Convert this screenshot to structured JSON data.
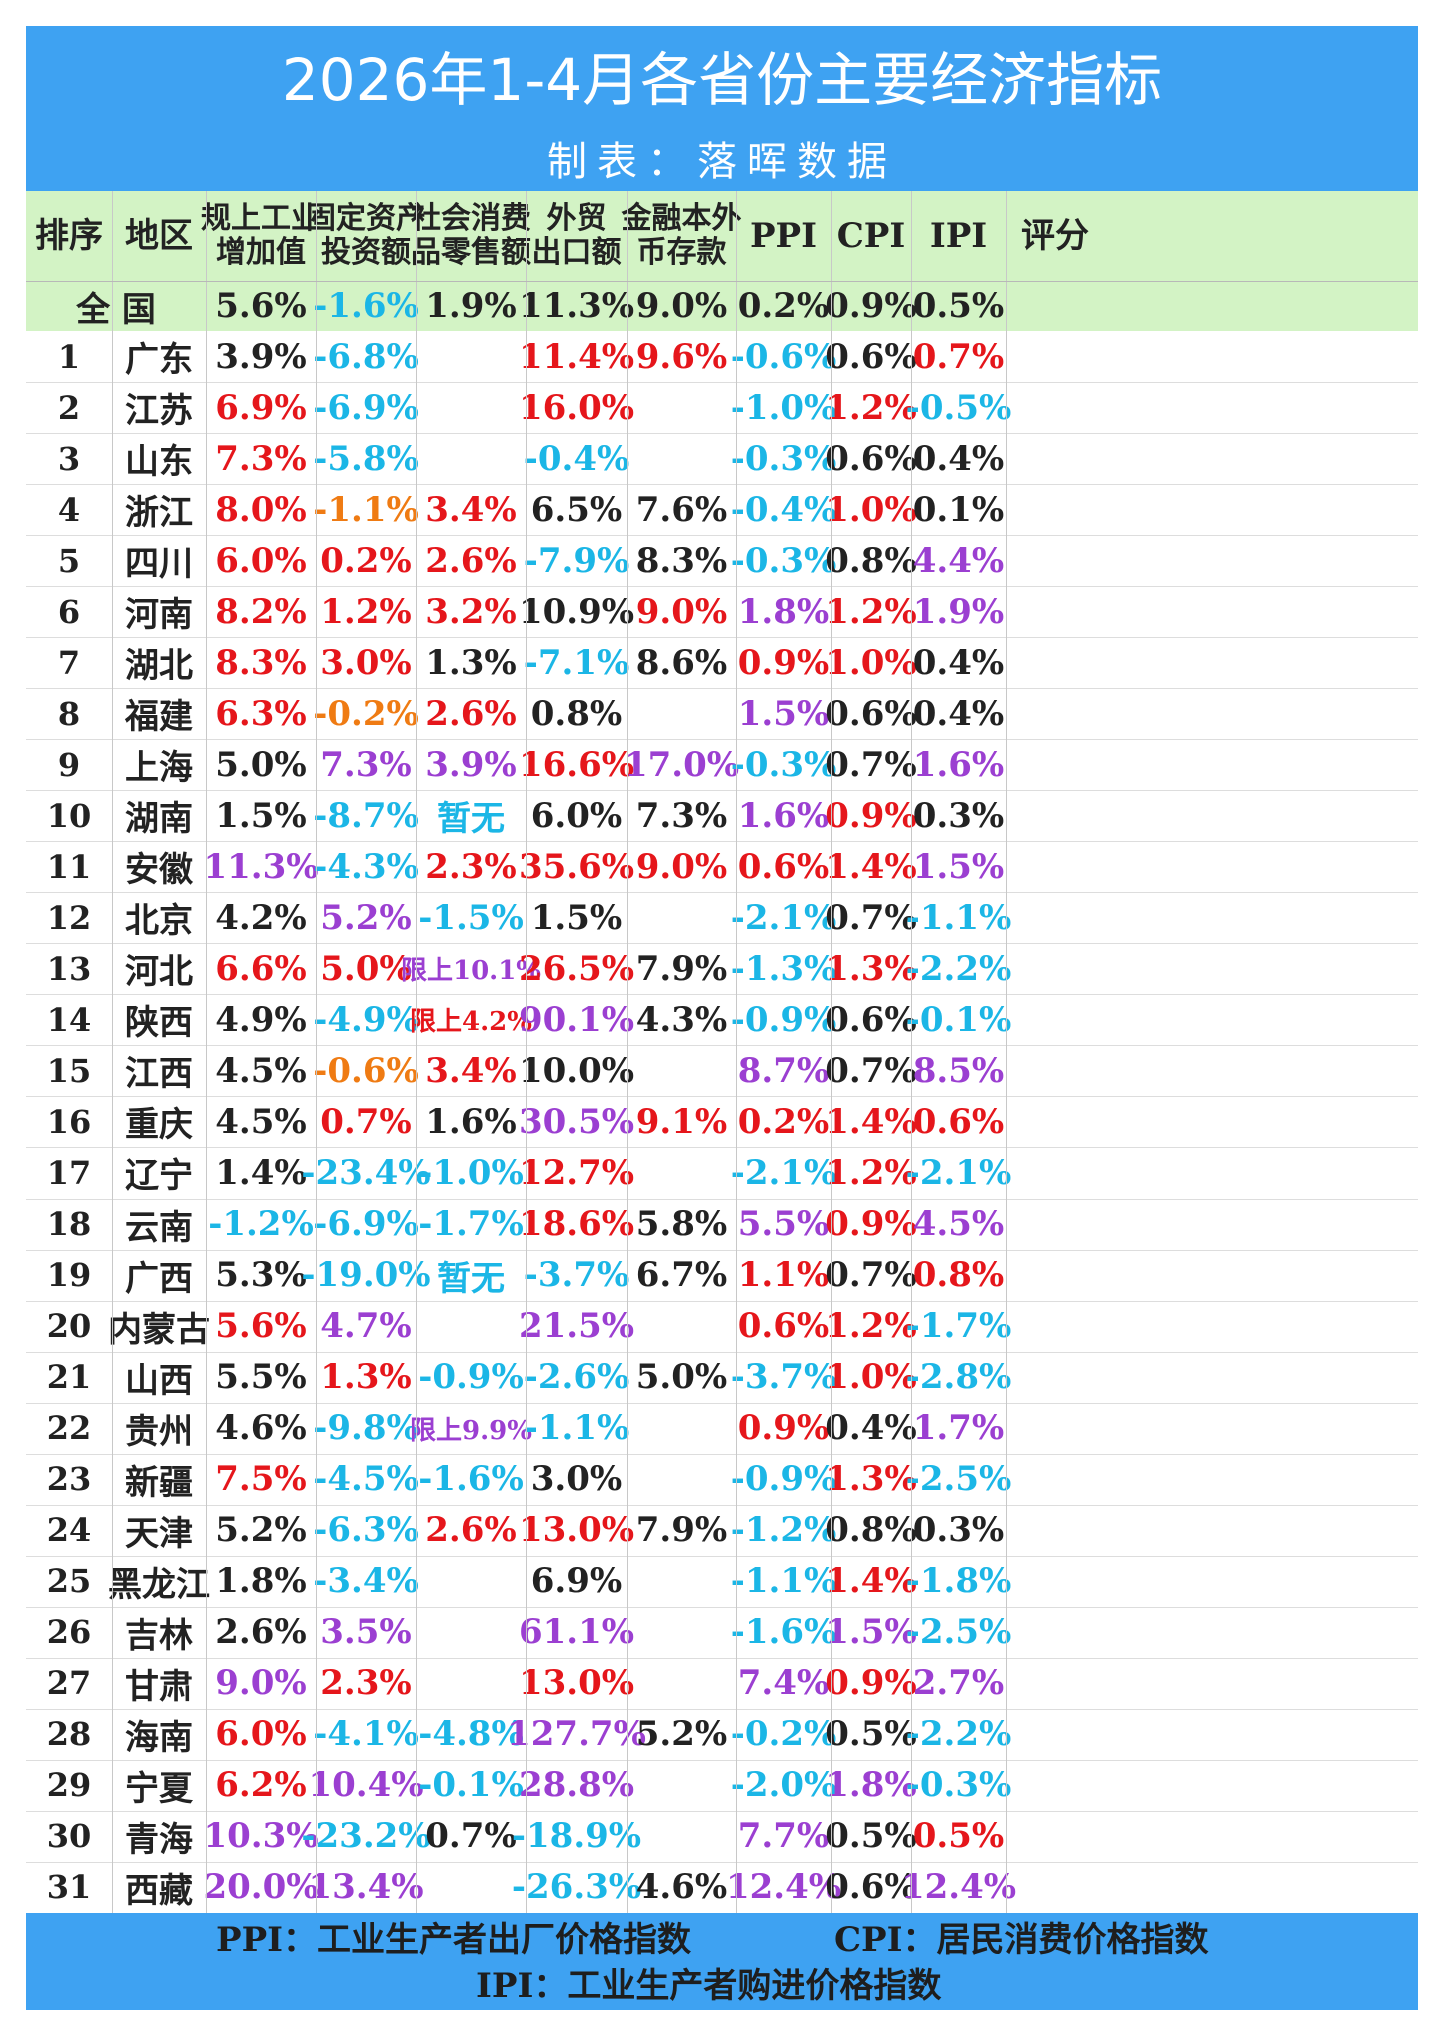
{
  "title": "2026年1-4月各省份主要经济指标",
  "subtitle": "制表：落晖数据",
  "colors": {
    "black": "#222222",
    "red": "#e5161b",
    "blue": "#1bb6e6",
    "purple": "#9b3fd1",
    "orange": "#ef7b13",
    "title_band": "#3ea2f2",
    "header_band": "#d3f3c5"
  },
  "headers": [
    {
      "line1": "排序",
      "line2": ""
    },
    {
      "line1": "地区",
      "line2": ""
    },
    {
      "line1": "规上工业",
      "line2": "增加值"
    },
    {
      "line1": "固定资产",
      "line2": "投资额"
    },
    {
      "line1": "社会消费",
      "line2": "品零售额"
    },
    {
      "line1": "外贸",
      "line2": "出口额"
    },
    {
      "line1": "金融本外",
      "line2": "币存款"
    },
    {
      "line1": "PPI",
      "line2": ""
    },
    {
      "line1": "CPI",
      "line2": ""
    },
    {
      "line1": "IPI",
      "line2": ""
    },
    {
      "line1": "评分",
      "line2": ""
    }
  ],
  "national": {
    "label": "全 国",
    "values": [
      [
        "5.6%",
        "k"
      ],
      [
        "-1.6%",
        "b"
      ],
      [
        "1.9%",
        "k"
      ],
      [
        "11.3%",
        "k"
      ],
      [
        "9.0%",
        "k"
      ],
      [
        "0.2%",
        "k"
      ],
      [
        "0.9%",
        "k"
      ],
      [
        "0.5%",
        "k"
      ]
    ]
  },
  "rows": [
    {
      "rank": "1",
      "region": "广东",
      "vals": [
        [
          "3.9%",
          "k"
        ],
        [
          "-6.8%",
          "b"
        ],
        [
          "",
          ""
        ],
        [
          "11.4%",
          "r"
        ],
        [
          "9.6%",
          "r"
        ],
        [
          "-0.6%",
          "b"
        ],
        [
          "0.6%",
          "k"
        ],
        [
          "0.7%",
          "r"
        ]
      ]
    },
    {
      "rank": "2",
      "region": "江苏",
      "vals": [
        [
          "6.9%",
          "r"
        ],
        [
          "-6.9%",
          "b"
        ],
        [
          "",
          ""
        ],
        [
          "16.0%",
          "r"
        ],
        [
          "",
          ""
        ],
        [
          "-1.0%",
          "b"
        ],
        [
          "1.2%",
          "r"
        ],
        [
          "-0.5%",
          "b"
        ]
      ]
    },
    {
      "rank": "3",
      "region": "山东",
      "vals": [
        [
          "7.3%",
          "r"
        ],
        [
          "-5.8%",
          "b"
        ],
        [
          "",
          ""
        ],
        [
          "-0.4%",
          "b"
        ],
        [
          "",
          ""
        ],
        [
          "-0.3%",
          "b"
        ],
        [
          "0.6%",
          "k"
        ],
        [
          "0.4%",
          "k"
        ]
      ]
    },
    {
      "rank": "4",
      "region": "浙江",
      "vals": [
        [
          "8.0%",
          "r"
        ],
        [
          "-1.1%",
          "o"
        ],
        [
          "3.4%",
          "r"
        ],
        [
          "6.5%",
          "k"
        ],
        [
          "7.6%",
          "k"
        ],
        [
          "-0.4%",
          "b"
        ],
        [
          "1.0%",
          "r"
        ],
        [
          "0.1%",
          "k"
        ]
      ]
    },
    {
      "rank": "5",
      "region": "四川",
      "vals": [
        [
          "6.0%",
          "r"
        ],
        [
          "0.2%",
          "r"
        ],
        [
          "2.6%",
          "r"
        ],
        [
          "-7.9%",
          "b"
        ],
        [
          "8.3%",
          "k"
        ],
        [
          "-0.3%",
          "b"
        ],
        [
          "0.8%",
          "k"
        ],
        [
          "4.4%",
          "p"
        ]
      ]
    },
    {
      "rank": "6",
      "region": "河南",
      "vals": [
        [
          "8.2%",
          "r"
        ],
        [
          "1.2%",
          "r"
        ],
        [
          "3.2%",
          "r"
        ],
        [
          "10.9%",
          "k"
        ],
        [
          "9.0%",
          "r"
        ],
        [
          "1.8%",
          "p"
        ],
        [
          "1.2%",
          "r"
        ],
        [
          "1.9%",
          "p"
        ]
      ]
    },
    {
      "rank": "7",
      "region": "湖北",
      "vals": [
        [
          "8.3%",
          "r"
        ],
        [
          "3.0%",
          "r"
        ],
        [
          "1.3%",
          "k"
        ],
        [
          "-7.1%",
          "b"
        ],
        [
          "8.6%",
          "k"
        ],
        [
          "0.9%",
          "r"
        ],
        [
          "1.0%",
          "r"
        ],
        [
          "0.4%",
          "k"
        ]
      ]
    },
    {
      "rank": "8",
      "region": "福建",
      "vals": [
        [
          "6.3%",
          "r"
        ],
        [
          "-0.2%",
          "o"
        ],
        [
          "2.6%",
          "r"
        ],
        [
          "0.8%",
          "k"
        ],
        [
          "",
          ""
        ],
        [
          "1.5%",
          "p"
        ],
        [
          "0.6%",
          "k"
        ],
        [
          "0.4%",
          "k"
        ]
      ]
    },
    {
      "rank": "9",
      "region": "上海",
      "vals": [
        [
          "5.0%",
          "k"
        ],
        [
          "7.3%",
          "p"
        ],
        [
          "3.9%",
          "p"
        ],
        [
          "16.6%",
          "r"
        ],
        [
          "17.0%",
          "p"
        ],
        [
          "-0.3%",
          "b"
        ],
        [
          "0.7%",
          "k"
        ],
        [
          "1.6%",
          "p"
        ]
      ]
    },
    {
      "rank": "10",
      "region": "湖南",
      "vals": [
        [
          "1.5%",
          "k"
        ],
        [
          "-8.7%",
          "b"
        ],
        [
          "暂无",
          "b"
        ],
        [
          "6.0%",
          "k"
        ],
        [
          "7.3%",
          "k"
        ],
        [
          "1.6%",
          "p"
        ],
        [
          "0.9%",
          "r"
        ],
        [
          "0.3%",
          "k"
        ]
      ]
    },
    {
      "rank": "11",
      "region": "安徽",
      "vals": [
        [
          "11.3%",
          "p"
        ],
        [
          "-4.3%",
          "b"
        ],
        [
          "2.3%",
          "r"
        ],
        [
          "35.6%",
          "r"
        ],
        [
          "9.0%",
          "r"
        ],
        [
          "0.6%",
          "r"
        ],
        [
          "1.4%",
          "r"
        ],
        [
          "1.5%",
          "p"
        ]
      ]
    },
    {
      "rank": "12",
      "region": "北京",
      "vals": [
        [
          "4.2%",
          "k"
        ],
        [
          "5.2%",
          "p"
        ],
        [
          "-1.5%",
          "b"
        ],
        [
          "1.5%",
          "k"
        ],
        [
          "",
          ""
        ],
        [
          "-2.1%",
          "b"
        ],
        [
          "0.7%",
          "k"
        ],
        [
          "-1.1%",
          "b"
        ]
      ]
    },
    {
      "rank": "13",
      "region": "河北",
      "vals": [
        [
          "6.6%",
          "r"
        ],
        [
          "5.0%",
          "r"
        ],
        [
          "限上10.1%",
          "pS"
        ],
        [
          "26.5%",
          "r"
        ],
        [
          "7.9%",
          "k"
        ],
        [
          "-1.3%",
          "b"
        ],
        [
          "1.3%",
          "r"
        ],
        [
          "-2.2%",
          "b"
        ]
      ]
    },
    {
      "rank": "14",
      "region": "陕西",
      "vals": [
        [
          "4.9%",
          "k"
        ],
        [
          "-4.9%",
          "b"
        ],
        [
          "限上4.2%",
          "rS"
        ],
        [
          "90.1%",
          "p"
        ],
        [
          "4.3%",
          "k"
        ],
        [
          "-0.9%",
          "b"
        ],
        [
          "0.6%",
          "k"
        ],
        [
          "-0.1%",
          "b"
        ]
      ]
    },
    {
      "rank": "15",
      "region": "江西",
      "vals": [
        [
          "4.5%",
          "k"
        ],
        [
          "-0.6%",
          "o"
        ],
        [
          "3.4%",
          "r"
        ],
        [
          "10.0%",
          "k"
        ],
        [
          "",
          ""
        ],
        [
          "8.7%",
          "p"
        ],
        [
          "0.7%",
          "k"
        ],
        [
          "8.5%",
          "p"
        ]
      ]
    },
    {
      "rank": "16",
      "region": "重庆",
      "vals": [
        [
          "4.5%",
          "k"
        ],
        [
          "0.7%",
          "r"
        ],
        [
          "1.6%",
          "k"
        ],
        [
          "30.5%",
          "p"
        ],
        [
          "9.1%",
          "r"
        ],
        [
          "0.2%",
          "r"
        ],
        [
          "1.4%",
          "r"
        ],
        [
          "0.6%",
          "r"
        ]
      ]
    },
    {
      "rank": "17",
      "region": "辽宁",
      "vals": [
        [
          "1.4%",
          "k"
        ],
        [
          "-23.4%",
          "b"
        ],
        [
          "-1.0%",
          "b"
        ],
        [
          "12.7%",
          "r"
        ],
        [
          "",
          ""
        ],
        [
          "-2.1%",
          "b"
        ],
        [
          "1.2%",
          "r"
        ],
        [
          "-2.1%",
          "b"
        ]
      ]
    },
    {
      "rank": "18",
      "region": "云南",
      "vals": [
        [
          "-1.2%",
          "b"
        ],
        [
          "-6.9%",
          "b"
        ],
        [
          "-1.7%",
          "b"
        ],
        [
          "18.6%",
          "r"
        ],
        [
          "5.8%",
          "k"
        ],
        [
          "5.5%",
          "p"
        ],
        [
          "0.9%",
          "r"
        ],
        [
          "4.5%",
          "p"
        ]
      ]
    },
    {
      "rank": "19",
      "region": "广西",
      "vals": [
        [
          "5.3%",
          "k"
        ],
        [
          "-19.0%",
          "b"
        ],
        [
          "暂无",
          "b"
        ],
        [
          "-3.7%",
          "b"
        ],
        [
          "6.7%",
          "k"
        ],
        [
          "1.1%",
          "r"
        ],
        [
          "0.7%",
          "k"
        ],
        [
          "0.8%",
          "r"
        ]
      ]
    },
    {
      "rank": "20",
      "region": "内蒙古",
      "vals": [
        [
          "5.6%",
          "r"
        ],
        [
          "4.7%",
          "p"
        ],
        [
          "",
          ""
        ],
        [
          "21.5%",
          "p"
        ],
        [
          "",
          ""
        ],
        [
          "0.6%",
          "r"
        ],
        [
          "1.2%",
          "r"
        ],
        [
          "-1.7%",
          "b"
        ]
      ]
    },
    {
      "rank": "21",
      "region": "山西",
      "vals": [
        [
          "5.5%",
          "k"
        ],
        [
          "1.3%",
          "r"
        ],
        [
          "-0.9%",
          "b"
        ],
        [
          "-2.6%",
          "b"
        ],
        [
          "5.0%",
          "k"
        ],
        [
          "-3.7%",
          "b"
        ],
        [
          "1.0%",
          "r"
        ],
        [
          "-2.8%",
          "b"
        ]
      ]
    },
    {
      "rank": "22",
      "region": "贵州",
      "vals": [
        [
          "4.6%",
          "k"
        ],
        [
          "-9.8%",
          "b"
        ],
        [
          "限上9.9%",
          "pS"
        ],
        [
          "-1.1%",
          "b"
        ],
        [
          "",
          ""
        ],
        [
          "0.9%",
          "r"
        ],
        [
          "0.4%",
          "k"
        ],
        [
          "1.7%",
          "p"
        ]
      ]
    },
    {
      "rank": "23",
      "region": "新疆",
      "vals": [
        [
          "7.5%",
          "r"
        ],
        [
          "-4.5%",
          "b"
        ],
        [
          "-1.6%",
          "b"
        ],
        [
          "3.0%",
          "k"
        ],
        [
          "",
          ""
        ],
        [
          "-0.9%",
          "b"
        ],
        [
          "1.3%",
          "r"
        ],
        [
          "-2.5%",
          "b"
        ]
      ]
    },
    {
      "rank": "24",
      "region": "天津",
      "vals": [
        [
          "5.2%",
          "k"
        ],
        [
          "-6.3%",
          "b"
        ],
        [
          "2.6%",
          "r"
        ],
        [
          "13.0%",
          "r"
        ],
        [
          "7.9%",
          "k"
        ],
        [
          "-1.2%",
          "b"
        ],
        [
          "0.8%",
          "k"
        ],
        [
          "0.3%",
          "k"
        ]
      ]
    },
    {
      "rank": "25",
      "region": "黑龙江",
      "vals": [
        [
          "1.8%",
          "k"
        ],
        [
          "-3.4%",
          "b"
        ],
        [
          "",
          ""
        ],
        [
          "6.9%",
          "k"
        ],
        [
          "",
          ""
        ],
        [
          "-1.1%",
          "b"
        ],
        [
          "1.4%",
          "r"
        ],
        [
          "-1.8%",
          "b"
        ]
      ]
    },
    {
      "rank": "26",
      "region": "吉林",
      "vals": [
        [
          "2.6%",
          "k"
        ],
        [
          "3.5%",
          "p"
        ],
        [
          "",
          ""
        ],
        [
          "61.1%",
          "p"
        ],
        [
          "",
          ""
        ],
        [
          "-1.6%",
          "b"
        ],
        [
          "1.5%",
          "p"
        ],
        [
          "-2.5%",
          "b"
        ]
      ]
    },
    {
      "rank": "27",
      "region": "甘肃",
      "vals": [
        [
          "9.0%",
          "p"
        ],
        [
          "2.3%",
          "r"
        ],
        [
          "",
          ""
        ],
        [
          "13.0%",
          "r"
        ],
        [
          "",
          ""
        ],
        [
          "7.4%",
          "p"
        ],
        [
          "0.9%",
          "r"
        ],
        [
          "2.7%",
          "p"
        ]
      ]
    },
    {
      "rank": "28",
      "region": "海南",
      "vals": [
        [
          "6.0%",
          "r"
        ],
        [
          "-4.1%",
          "b"
        ],
        [
          "-4.8%",
          "b"
        ],
        [
          "127.7%",
          "p"
        ],
        [
          "5.2%",
          "k"
        ],
        [
          "-0.2%",
          "b"
        ],
        [
          "0.5%",
          "k"
        ],
        [
          "-2.2%",
          "b"
        ]
      ]
    },
    {
      "rank": "29",
      "region": "宁夏",
      "vals": [
        [
          "6.2%",
          "r"
        ],
        [
          "10.4%",
          "p"
        ],
        [
          "-0.1%",
          "b"
        ],
        [
          "28.8%",
          "p"
        ],
        [
          "",
          ""
        ],
        [
          "-2.0%",
          "b"
        ],
        [
          "1.8%",
          "p"
        ],
        [
          "-0.3%",
          "b"
        ]
      ]
    },
    {
      "rank": "30",
      "region": "青海",
      "vals": [
        [
          "10.3%",
          "p"
        ],
        [
          "-23.2%",
          "b"
        ],
        [
          "0.7%",
          "k"
        ],
        [
          "-18.9%",
          "b"
        ],
        [
          "",
          ""
        ],
        [
          "7.7%",
          "p"
        ],
        [
          "0.5%",
          "k"
        ],
        [
          "0.5%",
          "r"
        ]
      ]
    },
    {
      "rank": "31",
      "region": "西藏",
      "vals": [
        [
          "20.0%",
          "p"
        ],
        [
          "13.4%",
          "p"
        ],
        [
          "",
          ""
        ],
        [
          "-26.3%",
          "b"
        ],
        [
          "4.6%",
          "k"
        ],
        [
          "12.4%",
          "p"
        ],
        [
          "0.6%",
          "k"
        ],
        [
          "12.4%",
          "p"
        ]
      ]
    }
  ],
  "footer": {
    "ppi": "PPI：工业生产者出厂价格指数",
    "cpi": "CPI：居民消费价格指数",
    "ipi": "IPI：工业生产者购进价格指数"
  }
}
